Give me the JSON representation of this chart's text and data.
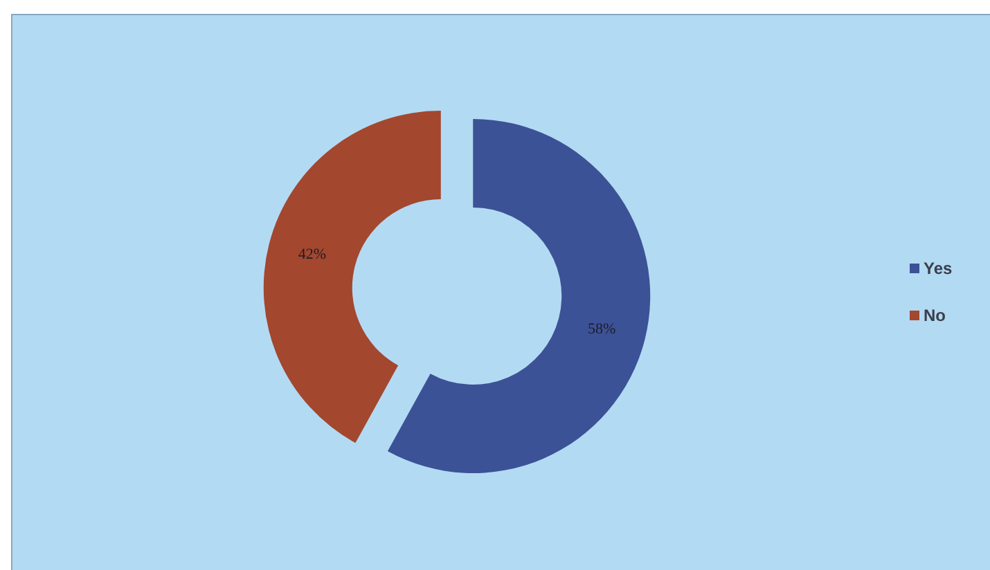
{
  "chart_data": {
    "type": "donut",
    "categories": [
      "Yes",
      "No"
    ],
    "values": [
      58,
      42
    ],
    "colors": [
      "#3c5296",
      "#a3472e"
    ],
    "value_labels": [
      "58%",
      "42%"
    ],
    "legend": "right"
  }
}
